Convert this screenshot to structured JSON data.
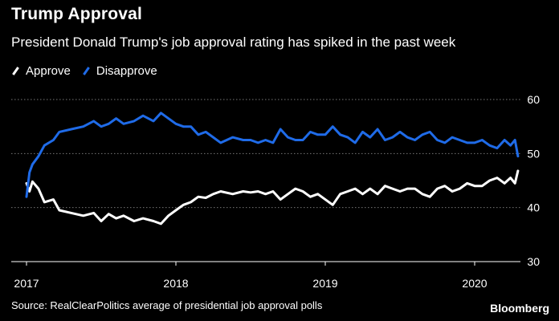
{
  "title": "Trump Approval",
  "subtitle": "President Donald Trump's job approval rating has spiked in the past week",
  "legend": {
    "approve_label": "Approve",
    "disapprove_label": "Disapprove"
  },
  "colors": {
    "approve": "#ffffff",
    "disapprove": "#1f6be8",
    "grid": "#777777"
  },
  "source": "Source: RealClearPolitics average of presidential job approval polls",
  "logo": "Bloomberg",
  "chart_data": {
    "type": "line",
    "title": "Trump Approval",
    "xlabel": "",
    "ylabel": "",
    "xlim": [
      2017.0,
      2020.34
    ],
    "ylim": [
      30,
      60
    ],
    "y_ticks": [
      30,
      40,
      50,
      60
    ],
    "y_tick_labels": [
      "30",
      "40",
      "50",
      "60"
    ],
    "x_ticks": [
      2017,
      2018,
      2019,
      2020
    ],
    "x_tick_labels": [
      "2017",
      "2018",
      "2019",
      "2020"
    ],
    "series": [
      {
        "name": "Approve",
        "x": [
          2017.0,
          2017.02,
          2017.04,
          2017.08,
          2017.12,
          2017.18,
          2017.22,
          2017.3,
          2017.38,
          2017.45,
          2017.5,
          2017.55,
          2017.6,
          2017.65,
          2017.72,
          2017.78,
          2017.85,
          2017.9,
          2017.95,
          2018.0,
          2018.05,
          2018.1,
          2018.15,
          2018.2,
          2018.25,
          2018.3,
          2018.38,
          2018.45,
          2018.5,
          2018.55,
          2018.6,
          2018.65,
          2018.7,
          2018.75,
          2018.8,
          2018.85,
          2018.9,
          2018.95,
          2019.0,
          2019.05,
          2019.1,
          2019.15,
          2019.2,
          2019.25,
          2019.3,
          2019.35,
          2019.4,
          2019.45,
          2019.5,
          2019.55,
          2019.6,
          2019.65,
          2019.7,
          2019.75,
          2019.8,
          2019.85,
          2019.9,
          2019.95,
          2020.0,
          2020.05,
          2020.1,
          2020.15,
          2020.2,
          2020.24,
          2020.27,
          2020.29
        ],
        "values": [
          44.5,
          43.0,
          44.8,
          43.5,
          41.0,
          41.5,
          39.5,
          39.0,
          38.5,
          39.0,
          37.5,
          38.8,
          38.0,
          38.5,
          37.5,
          38.0,
          37.5,
          37.0,
          38.5,
          39.5,
          40.5,
          41.0,
          42.0,
          41.8,
          42.5,
          43.0,
          42.5,
          43.0,
          42.8,
          43.0,
          42.5,
          43.0,
          41.5,
          42.5,
          43.5,
          43.0,
          42.0,
          42.5,
          41.5,
          40.5,
          42.5,
          43.0,
          43.5,
          42.5,
          43.5,
          42.5,
          44.0,
          43.5,
          43.0,
          43.5,
          43.5,
          42.5,
          42.0,
          43.5,
          44.0,
          43.0,
          43.5,
          44.5,
          44.0,
          44.0,
          45.0,
          45.5,
          44.5,
          45.5,
          44.5,
          46.8
        ]
      },
      {
        "name": "Disapprove",
        "x": [
          2017.0,
          2017.02,
          2017.04,
          2017.08,
          2017.12,
          2017.18,
          2017.22,
          2017.3,
          2017.38,
          2017.45,
          2017.5,
          2017.55,
          2017.6,
          2017.65,
          2017.72,
          2017.78,
          2017.85,
          2017.9,
          2017.95,
          2018.0,
          2018.05,
          2018.1,
          2018.15,
          2018.2,
          2018.25,
          2018.3,
          2018.38,
          2018.45,
          2018.5,
          2018.55,
          2018.6,
          2018.65,
          2018.7,
          2018.75,
          2018.8,
          2018.85,
          2018.9,
          2018.95,
          2019.0,
          2019.05,
          2019.1,
          2019.15,
          2019.2,
          2019.25,
          2019.3,
          2019.35,
          2019.4,
          2019.45,
          2019.5,
          2019.55,
          2019.6,
          2019.65,
          2019.7,
          2019.75,
          2019.8,
          2019.85,
          2019.9,
          2019.95,
          2020.0,
          2020.05,
          2020.1,
          2020.15,
          2020.2,
          2020.24,
          2020.27,
          2020.29
        ],
        "values": [
          42.0,
          46.5,
          48.0,
          49.5,
          51.5,
          52.5,
          54.0,
          54.5,
          55.0,
          56.0,
          55.0,
          55.5,
          56.5,
          55.5,
          56.0,
          57.0,
          56.0,
          57.5,
          56.5,
          55.5,
          55.0,
          55.0,
          53.5,
          54.0,
          53.0,
          52.0,
          53.0,
          52.5,
          52.5,
          52.0,
          52.5,
          52.0,
          54.5,
          53.0,
          52.5,
          52.5,
          54.0,
          53.5,
          53.5,
          55.0,
          53.5,
          53.0,
          52.0,
          54.0,
          53.0,
          54.5,
          52.5,
          53.0,
          54.0,
          53.0,
          52.5,
          53.5,
          54.0,
          52.5,
          52.0,
          53.0,
          52.5,
          52.0,
          52.0,
          52.5,
          51.5,
          51.0,
          52.5,
          51.5,
          52.5,
          49.5
        ]
      }
    ]
  }
}
